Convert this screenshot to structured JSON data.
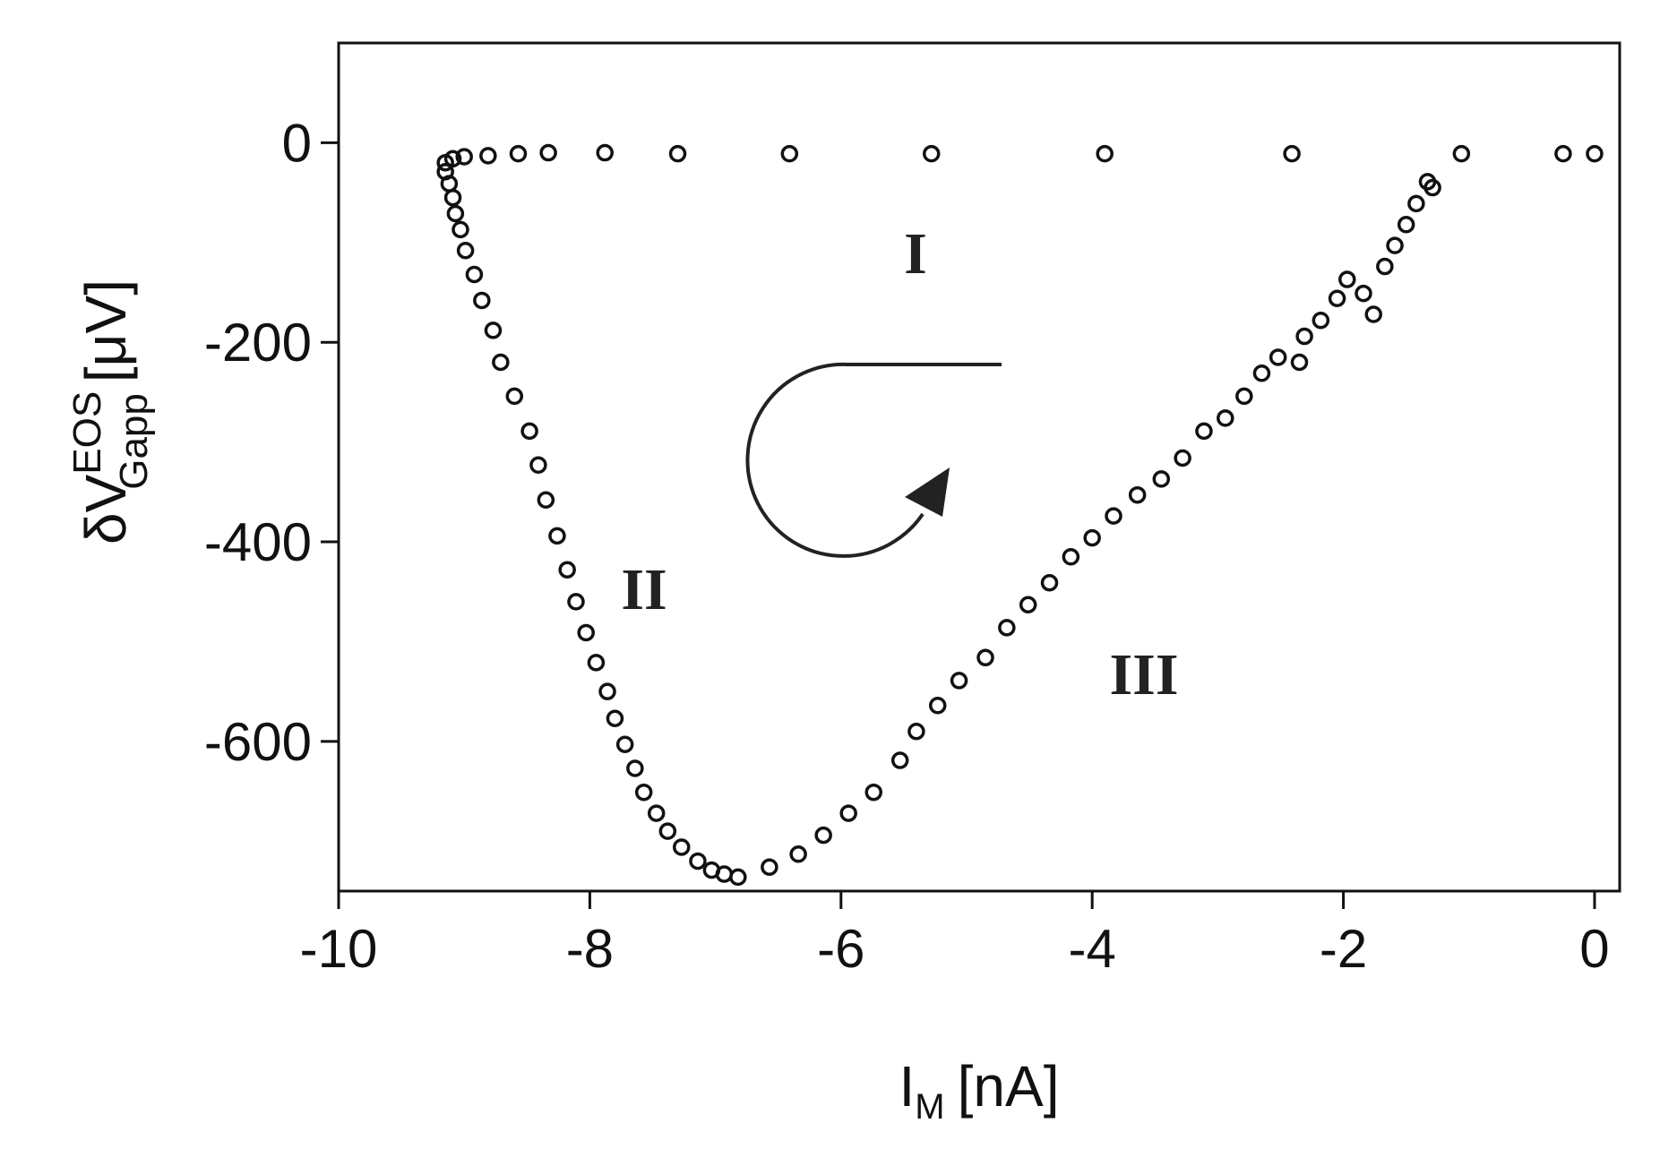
{
  "chart_data": {
    "type": "scatter",
    "xlabel": {
      "base": "I",
      "subscript": "M",
      "unit": "[nA]"
    },
    "ylabel": {
      "base": "δV",
      "superscript": "EOS",
      "subscript": "Gapp",
      "unit": "[μV]"
    },
    "annotations": [
      "I",
      "II",
      "III"
    ],
    "color": "#111111",
    "xlim": [
      -10,
      0.2
    ],
    "ylim": [
      -750,
      100
    ],
    "xticks": [
      -10,
      -8,
      -6,
      -4,
      -2,
      0
    ],
    "yticks": [
      -600,
      -400,
      -200,
      0
    ],
    "x": [
      0.0,
      -0.25,
      -1.06,
      -2.41,
      -3.9,
      -5.28,
      -6.41,
      -7.3,
      -7.88,
      -8.33,
      -8.57,
      -8.81,
      -9.0,
      -9.09,
      -9.15,
      -9.15,
      -9.12,
      -9.09,
      -9.07,
      -9.03,
      -8.99,
      -8.92,
      -8.86,
      -8.77,
      -8.71,
      -8.6,
      -8.48,
      -8.41,
      -8.35,
      -8.26,
      -8.18,
      -8.11,
      -8.03,
      -7.95,
      -7.86,
      -7.8,
      -7.72,
      -7.64,
      -7.57,
      -7.47,
      -7.38,
      -7.27,
      -7.14,
      -7.03,
      -6.93,
      -6.82,
      -6.57,
      -6.34,
      -6.14,
      -5.94,
      -5.74,
      -5.53,
      -5.4,
      -5.23,
      -5.06,
      -4.85,
      -4.68,
      -4.51,
      -4.34,
      -4.17,
      -4.0,
      -3.83,
      -3.64,
      -3.45,
      -3.28,
      -3.11,
      -2.94,
      -2.79,
      -2.65,
      -2.52,
      -2.35,
      -2.31,
      -2.18,
      -2.05,
      -1.97,
      -1.84,
      -1.76,
      -1.67,
      -1.59,
      -1.5,
      -1.42,
      -1.33,
      -1.29
    ],
    "y": [
      -11,
      -11,
      -11,
      -11,
      -11,
      -11,
      -11,
      -11,
      -10,
      -10,
      -11,
      -13,
      -14,
      -16,
      -20,
      -29,
      -41,
      -55,
      -71,
      -87,
      -108,
      -132,
      -158,
      -188,
      -220,
      -254,
      -289,
      -323,
      -358,
      -394,
      -428,
      -460,
      -491,
      -521,
      -550,
      -577,
      -603,
      -627,
      -651,
      -672,
      -690,
      -706,
      -720,
      -729,
      -733,
      -736,
      -726,
      -713,
      -694,
      -672,
      -651,
      -619,
      -590,
      -564,
      -539,
      -516,
      -486,
      -463,
      -441,
      -415,
      -396,
      -374,
      -353,
      -337,
      -316,
      -289,
      -276,
      -254,
      -231,
      -215,
      -220,
      -194,
      -178,
      -156,
      -137,
      -151,
      -172,
      -124,
      -103,
      -82,
      -61,
      -39,
      -45
    ]
  }
}
